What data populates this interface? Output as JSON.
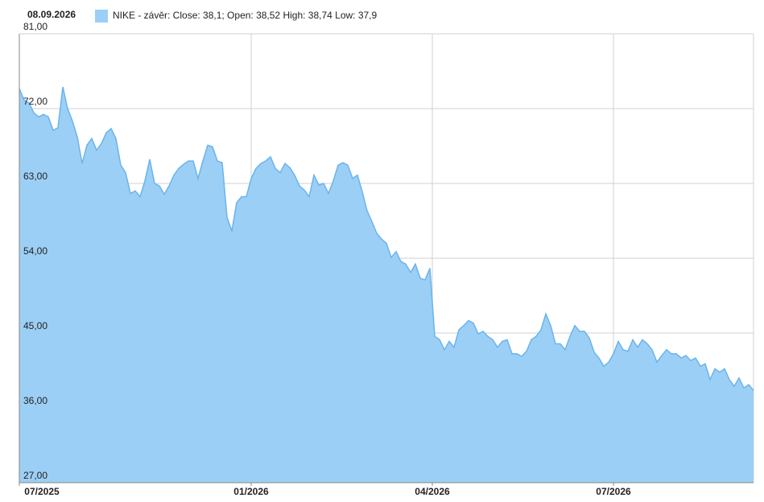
{
  "chart_data": {
    "type": "area",
    "date": "08.09.2026",
    "series": [
      {
        "name": "NIKE - závěr: Close: 38,1; Open: 38,52 High: 38,74 Low: 37,9",
        "color": "#9ccff5",
        "line_color": "#6ab4ec",
        "values": [
          74.4,
          73,
          72.7,
          71.5,
          71,
          71.3,
          71,
          69.4,
          69.7,
          74.6,
          72,
          70.5,
          68.6,
          65.4,
          67.6,
          68.4,
          67,
          67.8,
          69.1,
          69.6,
          68.4,
          65.2,
          64.3,
          61.8,
          62.1,
          61.4,
          63.3,
          65.9,
          63,
          62.7,
          61.7,
          62.7,
          64,
          64.8,
          65.3,
          65.7,
          65.7,
          63.6,
          65.7,
          67.6,
          67.4,
          65.7,
          65.5,
          58.9,
          57.3,
          60.7,
          61.4,
          61.4,
          63.6,
          64.8,
          65.4,
          65.7,
          66.2,
          64.8,
          64.3,
          65.4,
          64.9,
          64,
          62.7,
          62.2,
          61.4,
          64,
          62.8,
          63,
          61.8,
          63.3,
          65.2,
          65.5,
          65.2,
          63.6,
          64,
          62,
          59.7,
          58.4,
          57,
          56.3,
          55.8,
          54.1,
          54.8,
          53.6,
          53.3,
          52.3,
          53.3,
          51.6,
          51.4,
          52.8,
          44.6,
          44.2,
          43,
          44,
          43.3,
          45.4,
          45.9,
          46.5,
          46.2,
          44.9,
          45.2,
          44.6,
          44.2,
          43.3,
          44,
          44.2,
          42.5,
          42.5,
          42.2,
          42.8,
          44.2,
          44.6,
          45.4,
          47.3,
          45.9,
          43.7,
          43.7,
          43,
          44.6,
          45.9,
          45.2,
          45.2,
          44.4,
          42.7,
          42,
          41,
          41.5,
          42.5,
          44,
          43,
          42.8,
          44.2,
          43.3,
          44.2,
          43.7,
          43,
          41.5,
          42.3,
          43,
          42.5,
          42.5,
          42,
          42.3,
          41.7,
          42,
          41,
          41.3,
          39.4,
          40.7,
          40.3,
          40.7,
          39.4,
          38.6,
          39.6,
          38.4,
          38.8,
          38.1
        ]
      }
    ],
    "xlim": [
      0,
      152
    ],
    "xticks": [
      {
        "value": 0,
        "label": "07/2025"
      },
      {
        "value": 48,
        "label": "01/2026"
      },
      {
        "value": 85.5,
        "label": "04/2026"
      },
      {
        "value": 123,
        "label": "07/2026"
      }
    ],
    "ylim": [
      27,
      81
    ],
    "yticks": [
      {
        "value": 27,
        "label": "27,00"
      },
      {
        "value": 36,
        "label": "36,00"
      },
      {
        "value": 45,
        "label": "45,00"
      },
      {
        "value": 54,
        "label": "54,00"
      },
      {
        "value": 63,
        "label": "63,00"
      },
      {
        "value": 72,
        "label": "72,00"
      },
      {
        "value": 81,
        "label": "81,00"
      }
    ],
    "grid": true
  }
}
